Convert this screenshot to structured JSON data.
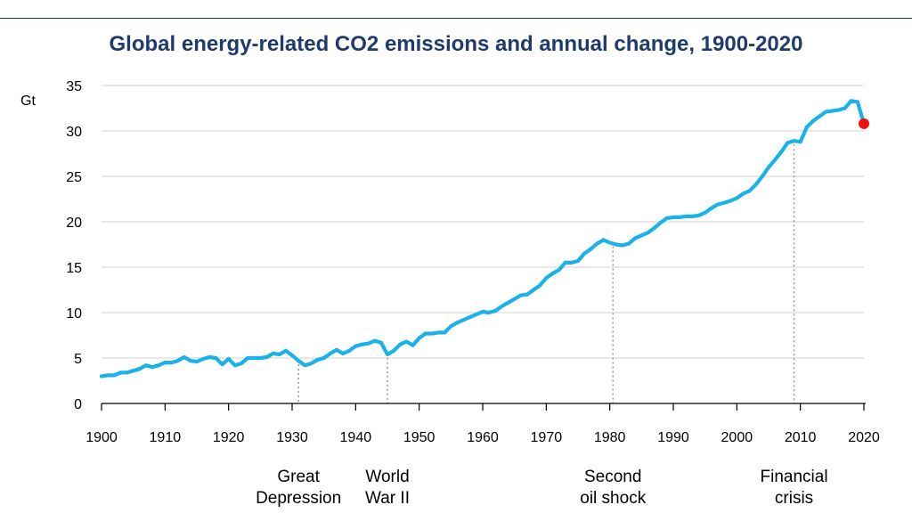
{
  "chart_data": {
    "type": "line",
    "title": "Global energy-related CO2 emissions and annual change, 1900-2020",
    "xlabel": "",
    "ylabel": "Gt",
    "xlim": [
      1900,
      2020
    ],
    "ylim": [
      0,
      35
    ],
    "x_ticks": [
      1900,
      1910,
      1920,
      1930,
      1940,
      1950,
      1960,
      1970,
      1980,
      1990,
      2000,
      2010,
      2020
    ],
    "y_ticks": [
      0,
      5,
      10,
      15,
      20,
      25,
      30,
      35
    ],
    "grid": true,
    "colors": {
      "line": "#1ab2e8",
      "highlight": "#ee1111",
      "grid": "#d9d9d9",
      "dotted": "#999999"
    },
    "series": [
      {
        "name": "Global energy-related CO2 emissions",
        "points": [
          [
            1900,
            3.0
          ],
          [
            1901,
            3.1
          ],
          [
            1902,
            3.1
          ],
          [
            1903,
            3.4
          ],
          [
            1904,
            3.4
          ],
          [
            1905,
            3.6
          ],
          [
            1906,
            3.8
          ],
          [
            1907,
            4.2
          ],
          [
            1908,
            4.0
          ],
          [
            1909,
            4.2
          ],
          [
            1910,
            4.5
          ],
          [
            1911,
            4.5
          ],
          [
            1912,
            4.7
          ],
          [
            1913,
            5.1
          ],
          [
            1914,
            4.7
          ],
          [
            1915,
            4.6
          ],
          [
            1916,
            4.9
          ],
          [
            1917,
            5.1
          ],
          [
            1918,
            5.0
          ],
          [
            1919,
            4.3
          ],
          [
            1920,
            4.9
          ],
          [
            1921,
            4.2
          ],
          [
            1922,
            4.4
          ],
          [
            1923,
            5.0
          ],
          [
            1924,
            5.0
          ],
          [
            1925,
            5.0
          ],
          [
            1926,
            5.1
          ],
          [
            1927,
            5.5
          ],
          [
            1928,
            5.4
          ],
          [
            1929,
            5.8
          ],
          [
            1930,
            5.3
          ],
          [
            1931,
            4.7
          ],
          [
            1932,
            4.2
          ],
          [
            1933,
            4.4
          ],
          [
            1934,
            4.8
          ],
          [
            1935,
            5.0
          ],
          [
            1936,
            5.5
          ],
          [
            1937,
            5.9
          ],
          [
            1938,
            5.5
          ],
          [
            1939,
            5.8
          ],
          [
            1940,
            6.3
          ],
          [
            1941,
            6.5
          ],
          [
            1942,
            6.6
          ],
          [
            1943,
            6.9
          ],
          [
            1944,
            6.7
          ],
          [
            1945,
            5.4
          ],
          [
            1946,
            5.8
          ],
          [
            1947,
            6.5
          ],
          [
            1948,
            6.8
          ],
          [
            1949,
            6.4
          ],
          [
            1950,
            7.2
          ],
          [
            1951,
            7.7
          ],
          [
            1952,
            7.7
          ],
          [
            1953,
            7.8
          ],
          [
            1954,
            7.8
          ],
          [
            1955,
            8.5
          ],
          [
            1956,
            8.9
          ],
          [
            1957,
            9.2
          ],
          [
            1958,
            9.5
          ],
          [
            1959,
            9.8
          ],
          [
            1960,
            10.1
          ],
          [
            1961,
            10.0
          ],
          [
            1962,
            10.2
          ],
          [
            1963,
            10.7
          ],
          [
            1964,
            11.1
          ],
          [
            1965,
            11.5
          ],
          [
            1966,
            11.9
          ],
          [
            1967,
            12.0
          ],
          [
            1968,
            12.5
          ],
          [
            1969,
            13.0
          ],
          [
            1970,
            13.8
          ],
          [
            1971,
            14.3
          ],
          [
            1972,
            14.7
          ],
          [
            1973,
            15.5
          ],
          [
            1974,
            15.5
          ],
          [
            1975,
            15.7
          ],
          [
            1976,
            16.5
          ],
          [
            1977,
            17.0
          ],
          [
            1978,
            17.6
          ],
          [
            1979,
            18.0
          ],
          [
            1980,
            17.7
          ],
          [
            1981,
            17.5
          ],
          [
            1982,
            17.4
          ],
          [
            1983,
            17.6
          ],
          [
            1984,
            18.2
          ],
          [
            1985,
            18.5
          ],
          [
            1986,
            18.8
          ],
          [
            1987,
            19.3
          ],
          [
            1988,
            19.9
          ],
          [
            1989,
            20.4
          ],
          [
            1990,
            20.5
          ],
          [
            1991,
            20.5
          ],
          [
            1992,
            20.6
          ],
          [
            1993,
            20.6
          ],
          [
            1994,
            20.7
          ],
          [
            1995,
            21.0
          ],
          [
            1996,
            21.5
          ],
          [
            1997,
            21.9
          ],
          [
            1998,
            22.1
          ],
          [
            1999,
            22.3
          ],
          [
            2000,
            22.6
          ],
          [
            2001,
            23.1
          ],
          [
            2002,
            23.4
          ],
          [
            2003,
            24.1
          ],
          [
            2004,
            25.0
          ],
          [
            2005,
            26.0
          ],
          [
            2006,
            26.8
          ],
          [
            2007,
            27.7
          ],
          [
            2008,
            28.7
          ],
          [
            2009,
            28.9
          ],
          [
            2010,
            28.8
          ],
          [
            2011,
            30.4
          ],
          [
            2012,
            31.1
          ],
          [
            2013,
            31.6
          ],
          [
            2014,
            32.1
          ],
          [
            2015,
            32.2
          ],
          [
            2016,
            32.3
          ],
          [
            2017,
            32.5
          ],
          [
            2018,
            33.3
          ],
          [
            2019,
            33.2
          ],
          [
            2020,
            30.8
          ]
        ]
      }
    ],
    "highlight_point": [
      2020,
      30.8
    ],
    "annotations": [
      {
        "id": "great-depression",
        "year": 1931,
        "value": 4.7,
        "lines": [
          "Great",
          "Depression"
        ]
      },
      {
        "id": "world-war-ii",
        "year": 1945,
        "value": 5.4,
        "lines": [
          "World",
          "War II"
        ]
      },
      {
        "id": "second-oil-shock",
        "year": 1980.5,
        "value": 17.7,
        "lines": [
          "Second",
          "oil shock"
        ]
      },
      {
        "id": "financial-crisis",
        "year": 2009,
        "value": 28.9,
        "lines": [
          "Financial",
          "crisis"
        ]
      }
    ]
  }
}
